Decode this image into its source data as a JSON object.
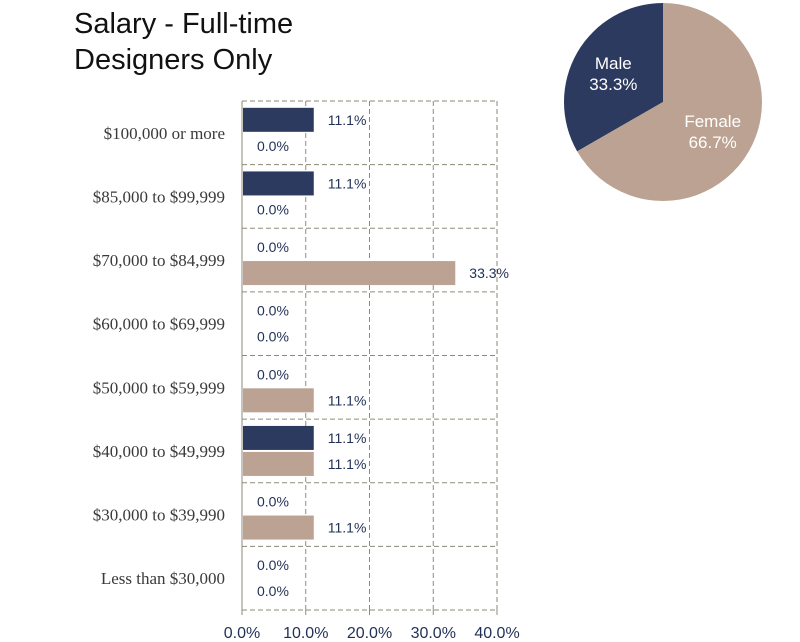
{
  "title_lines": [
    "Salary - Full-time",
    "Designers Only"
  ],
  "colors": {
    "male": "#2b3a5e",
    "female": "#bba292",
    "grid": "#8f8a78",
    "text": "#1f2f55"
  },
  "chart_data": [
    {
      "type": "bar",
      "orientation": "horizontal",
      "categories": [
        "$100,000 or more",
        "$85,000 to $99,999",
        "$70,000 to $84,999",
        "$60,000 to $69,999",
        "$50,000 to $59,999",
        "$40,000 to $49,999",
        "$30,000 to $39,990",
        "Less than $30,000"
      ],
      "series": [
        {
          "color": "#2b3a5e",
          "values": [
            11.1,
            11.1,
            0.0,
            0.0,
            0.0,
            11.1,
            0.0,
            0.0
          ],
          "labels": [
            "11.1%",
            "11.1%",
            "0.0%",
            "0.0%",
            "0.0%",
            "11.1%",
            "0.0%",
            "0.0%"
          ]
        },
        {
          "color": "#bba292",
          "values": [
            0.0,
            0.0,
            33.3,
            0.0,
            11.1,
            11.1,
            11.1,
            0.0
          ],
          "labels": [
            "0.0%",
            "0.0%",
            "33.3%",
            "0.0%",
            "11.1%",
            "11.1%",
            "11.1%",
            "0.0%"
          ]
        }
      ],
      "xlim": [
        0,
        40
      ],
      "xticks": [
        0,
        10,
        20,
        30,
        40
      ],
      "xtick_labels": [
        "0.0%",
        "10.0%",
        "20.0%",
        "30.0%",
        "40.0%"
      ],
      "grid": true
    },
    {
      "type": "pie",
      "slices": [
        {
          "name": "Male",
          "value": 33.3,
          "label": "33.3%",
          "color": "#2b3a5e"
        },
        {
          "name": "Female",
          "value": 66.7,
          "label": "66.7%",
          "color": "#bba292"
        }
      ]
    }
  ]
}
